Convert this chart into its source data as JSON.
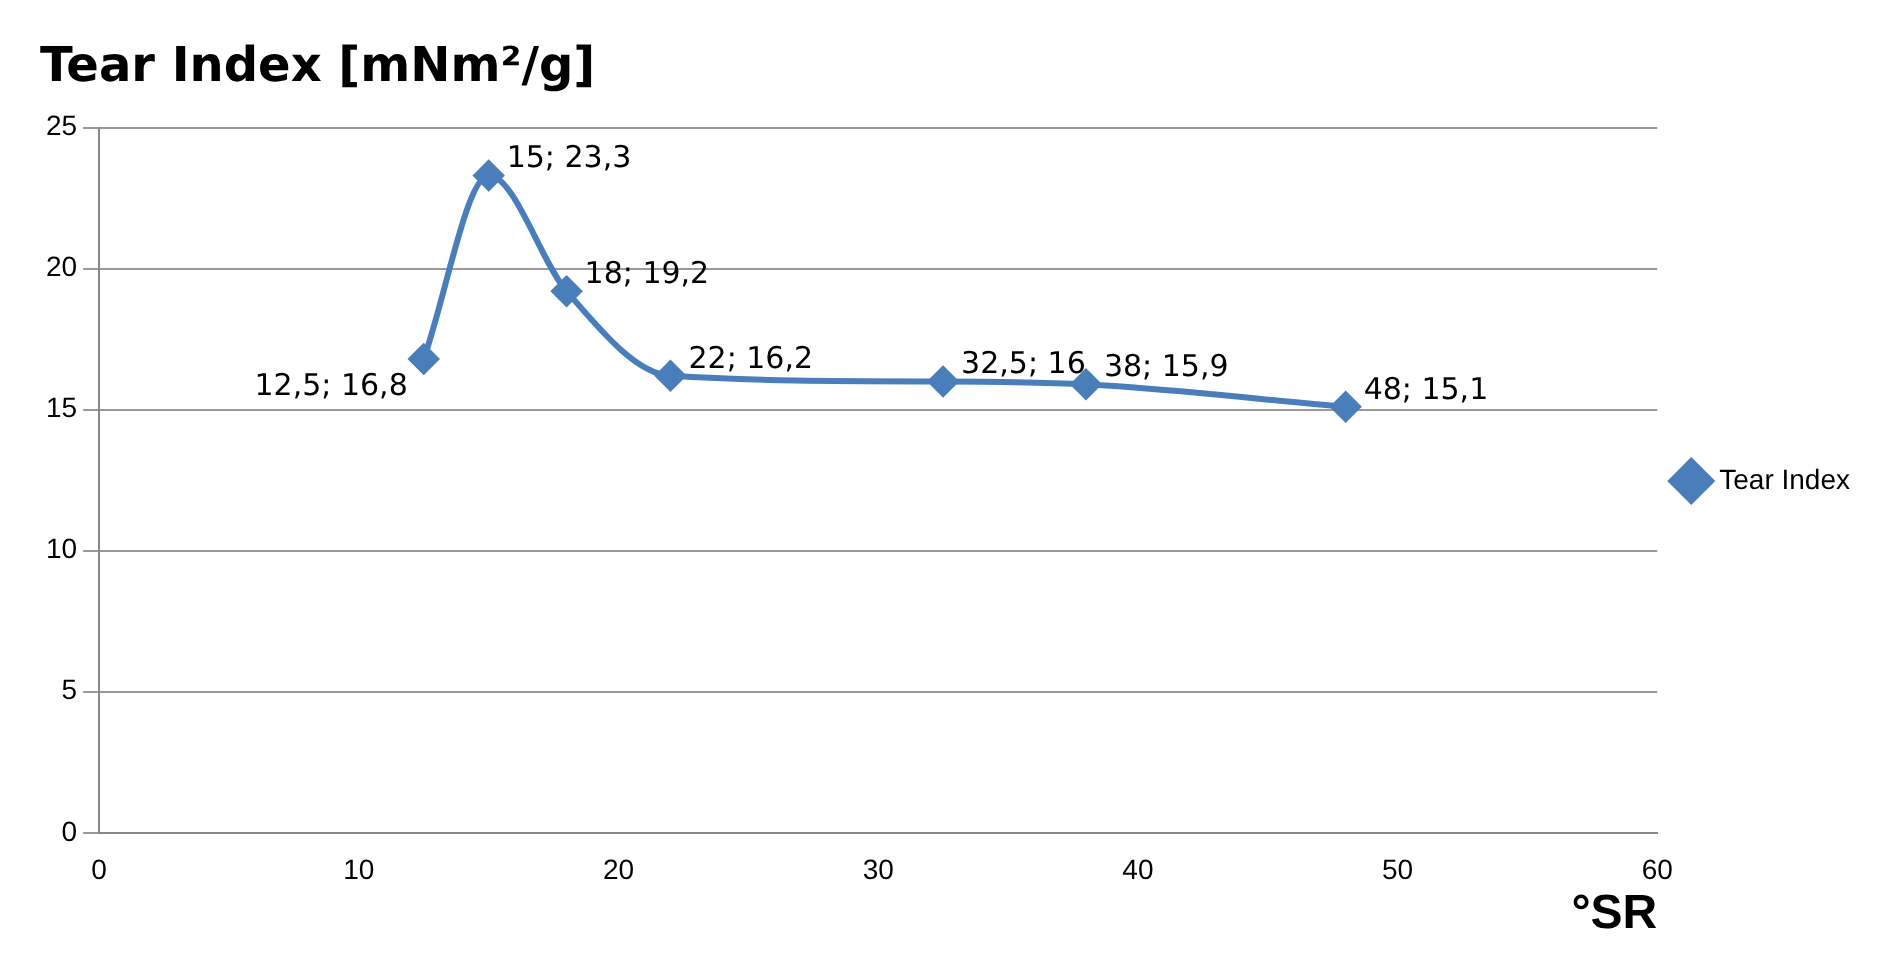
{
  "chart_data": {
    "type": "line",
    "title": "Tear Index [mNm²/g]",
    "xlabel": "°SR",
    "x": [
      12.5,
      15,
      18,
      22,
      32.5,
      38,
      48
    ],
    "series": [
      {
        "name": "Tear Index",
        "color": "#4a7ebb",
        "values": [
          16.8,
          23.3,
          19.2,
          16.2,
          16,
          15.9,
          15.1
        ],
        "value_labels": [
          "12,5; 16,8",
          "15; 23,3",
          "18; 19,2",
          "22; 16,2",
          "32,5; 16",
          "38; 15,9",
          "48; 15,1"
        ]
      }
    ],
    "xlim": [
      0,
      60
    ],
    "xticks": [
      0,
      10,
      20,
      30,
      40,
      50,
      60
    ],
    "ylim": [
      0,
      25
    ],
    "yticks": [
      0,
      5,
      10,
      15,
      20,
      25
    ],
    "grid": "y",
    "legend": "right",
    "marker": "diamond",
    "line_style": "solid"
  }
}
